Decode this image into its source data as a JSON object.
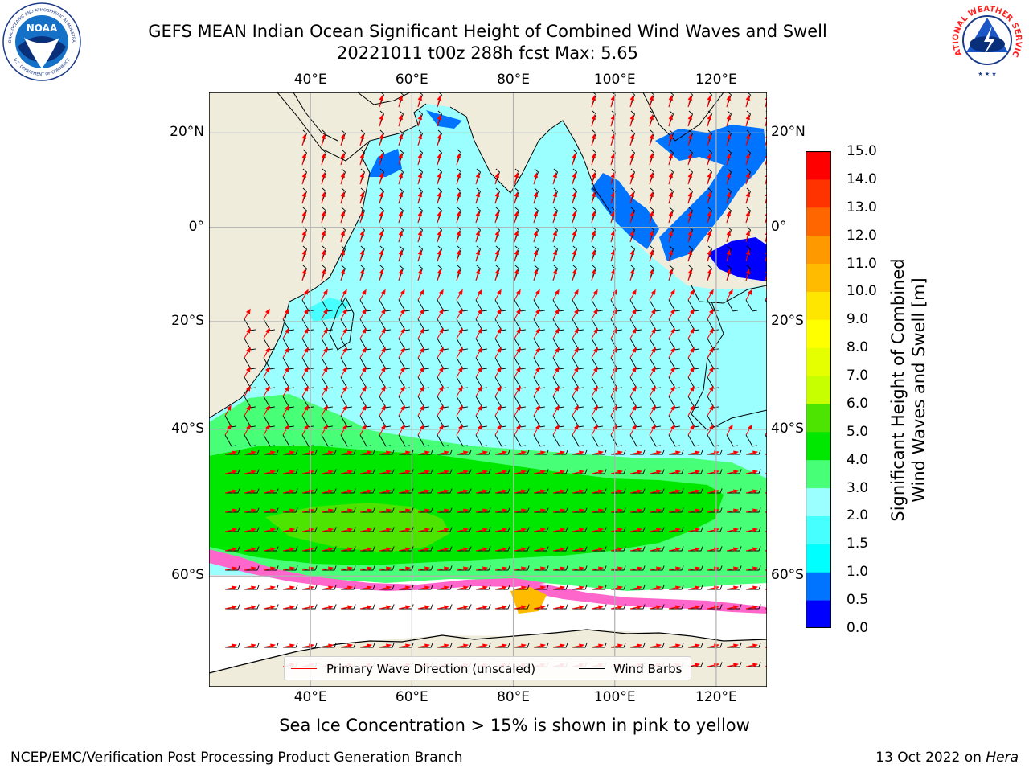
{
  "title_line1": "GEFS MEAN Indian Ocean Significant Height of Combined Wind Waves and Swell",
  "title_line2": "20221011 t00z 288h fcst   Max: 5.65",
  "logos": {
    "noaa_text": "NOAA",
    "noaa_ring_top": "NATIONAL OCEANIC AND ATMOSPHERIC ADMINISTRATION",
    "noaa_ring_bottom": "U.S. DEPARTMENT OF COMMERCE",
    "nws_ring": "NATIONAL WEATHER SERVICE"
  },
  "map": {
    "lon_labels": [
      "40°E",
      "60°E",
      "80°E",
      "100°E",
      "120°E"
    ],
    "lat_labels": [
      "20°N",
      "0°",
      "20°S",
      "40°S",
      "60°S"
    ],
    "lon_range": [
      20,
      130
    ],
    "lat_range": [
      -70,
      28
    ],
    "colors": {
      "land": "#efecdc",
      "ice_free_southern": "#ffffff",
      "wave_direction": "#ff0000",
      "wind_barb": "#000000",
      "grid": "#b0b0b0"
    }
  },
  "colorbar": {
    "ticks": [
      "0.0",
      "0.5",
      "1.0",
      "1.5",
      "2.0",
      "3.0",
      "4.0",
      "5.0",
      "6.0",
      "7.0",
      "8.0",
      "9.0",
      "10.0",
      "11.0",
      "12.0",
      "13.0",
      "14.0",
      "15.0"
    ],
    "colors": [
      "#0000ff",
      "#0073ff",
      "#00ffff",
      "#46ffff",
      "#9cffff",
      "#48ff78",
      "#00e800",
      "#4ce400",
      "#c8ff00",
      "#e6ff00",
      "#ffff00",
      "#ffe600",
      "#ffbb00",
      "#ff9900",
      "#ff6600",
      "#ff3300",
      "#ff0000"
    ],
    "label_line1": "Significant Height of Combined",
    "label_line2": "Wind Waves and Swell [m]"
  },
  "legend": {
    "items": [
      {
        "label": "Primary Wave Direction (unscaled)",
        "color": "#ff0000"
      },
      {
        "label": "Wind Barbs",
        "color": "#000000"
      }
    ]
  },
  "caption": "Sea Ice Concentration > 15% is shown in pink to yellow",
  "footer_left": "NCEP/EMC/Verification Post Processing Product Generation Branch",
  "footer_right_prefix": "13 Oct 2022 on ",
  "footer_right_host": "Hera"
}
